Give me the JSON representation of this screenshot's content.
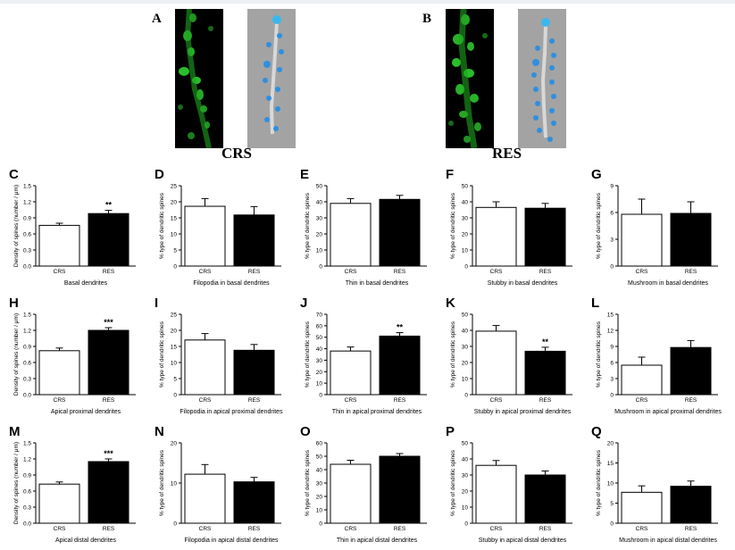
{
  "images": {
    "A": {
      "letter": "A",
      "group": "CRS"
    },
    "B": {
      "letter": "B",
      "group": "RES"
    }
  },
  "colors": {
    "ctrl_fill": "#ffffff",
    "exp_fill": "#000000",
    "fluor": "#2fd12f",
    "model_spine": "#2f8fe0",
    "model_bg": "#a3a3a3"
  },
  "chart_data": [
    {
      "letter": "C",
      "type": "bar",
      "categories": [
        "CRS",
        "RES"
      ],
      "values": [
        0.76,
        0.98
      ],
      "errors": [
        0.04,
        0.06
      ],
      "ylim": [
        0,
        1.5
      ],
      "yticks": [
        "0.0",
        "0.3",
        "0.6",
        "0.9",
        "1.2",
        "1.5"
      ],
      "ylabel": "Density of spines (number / μm)",
      "xlabel": "Basal dendrites",
      "sig": "**"
    },
    {
      "letter": "D",
      "type": "bar",
      "categories": [
        "CRS",
        "RES"
      ],
      "values": [
        18.6,
        15.9
      ],
      "errors": [
        2.4,
        2.6
      ],
      "ylim": [
        0,
        25
      ],
      "yticks": [
        "0",
        "5",
        "10",
        "15",
        "20",
        "25"
      ],
      "ylabel": "% type of dendritic spines",
      "xlabel": "Filopodia in basal dendrites",
      "sig": ""
    },
    {
      "letter": "E",
      "type": "bar",
      "categories": [
        "CRS",
        "RES"
      ],
      "values": [
        39,
        41.5
      ],
      "errors": [
        3,
        2.5
      ],
      "ylim": [
        0,
        50
      ],
      "yticks": [
        "0",
        "10",
        "20",
        "30",
        "40",
        "50"
      ],
      "ylabel": "% type of dendritic spines",
      "xlabel": "Thin in basal dendrites",
      "sig": ""
    },
    {
      "letter": "F",
      "type": "bar",
      "categories": [
        "CRS",
        "RES"
      ],
      "values": [
        36.5,
        36
      ],
      "errors": [
        3.5,
        3
      ],
      "ylim": [
        0,
        50
      ],
      "yticks": [
        "0",
        "10",
        "20",
        "30",
        "40",
        "50"
      ],
      "ylabel": "% type of dendritic spines",
      "xlabel": "Stubby in basal dendrites",
      "sig": ""
    },
    {
      "letter": "G",
      "type": "bar",
      "categories": [
        "CRS",
        "RES"
      ],
      "values": [
        5.8,
        5.9
      ],
      "errors": [
        1.7,
        1.3
      ],
      "ylim": [
        0,
        9
      ],
      "yticks": [
        "0",
        "3",
        "6",
        "9"
      ],
      "ylabel": "% type of dendritic spines",
      "xlabel": "Mushroom in basal dendrites",
      "sig": ""
    },
    {
      "letter": "H",
      "type": "bar",
      "categories": [
        "CRS",
        "RES"
      ],
      "values": [
        0.82,
        1.2
      ],
      "errors": [
        0.05,
        0.05
      ],
      "ylim": [
        0,
        1.5
      ],
      "yticks": [
        "0.0",
        "0.3",
        "0.6",
        "0.9",
        "1.2",
        "1.5"
      ],
      "ylabel": "Density of spines (number / μm)",
      "xlabel": "Apical proximal dendrites",
      "sig": "***"
    },
    {
      "letter": "I",
      "type": "bar",
      "categories": [
        "CRS",
        "RES"
      ],
      "values": [
        17,
        13.8
      ],
      "errors": [
        2,
        1.8
      ],
      "ylim": [
        0,
        25
      ],
      "yticks": [
        "0",
        "5",
        "10",
        "15",
        "20",
        "25"
      ],
      "ylabel": "% type of dendritic spines",
      "xlabel": "Filopodia in apical proximal dendrites",
      "sig": ""
    },
    {
      "letter": "J",
      "type": "bar",
      "categories": [
        "CRS",
        "RES"
      ],
      "values": [
        38,
        51
      ],
      "errors": [
        3.5,
        3
      ],
      "ylim": [
        0,
        70
      ],
      "yticks": [
        "0",
        "10",
        "20",
        "30",
        "40",
        "50",
        "60",
        "70"
      ],
      "ylabel": "% type of dendritic spines",
      "xlabel": "Thin in apical proximal dendrites",
      "sig": "**"
    },
    {
      "letter": "K",
      "type": "bar",
      "categories": [
        "CRS",
        "RES"
      ],
      "values": [
        39.5,
        27
      ],
      "errors": [
        3.5,
        2.5
      ],
      "ylim": [
        0,
        50
      ],
      "yticks": [
        "0",
        "10",
        "20",
        "30",
        "40",
        "50"
      ],
      "ylabel": "% type of dendritic spines",
      "xlabel": "Stubby in apical proximal dendrites",
      "sig": "**"
    },
    {
      "letter": "L",
      "type": "bar",
      "categories": [
        "CRS",
        "RES"
      ],
      "values": [
        5.5,
        8.8
      ],
      "errors": [
        1.5,
        1.3
      ],
      "ylim": [
        0,
        15
      ],
      "yticks": [
        "0",
        "3",
        "6",
        "9",
        "12",
        "15"
      ],
      "ylabel": "% type of dendritic spines",
      "xlabel": "Mushroom in apical proximal dendrites",
      "sig": ""
    },
    {
      "letter": "M",
      "type": "bar",
      "categories": [
        "CRS",
        "RES"
      ],
      "values": [
        0.73,
        1.15
      ],
      "errors": [
        0.04,
        0.05
      ],
      "ylim": [
        0,
        1.5
      ],
      "yticks": [
        "0.0",
        "0.3",
        "0.6",
        "0.9",
        "1.2",
        "1.5"
      ],
      "ylabel": "Density of spines (number / μm)",
      "xlabel": "Apical distal dendrites",
      "sig": "***"
    },
    {
      "letter": "N",
      "type": "bar",
      "categories": [
        "CRS",
        "RES"
      ],
      "values": [
        12.2,
        10.3
      ],
      "errors": [
        2.4,
        1.1
      ],
      "ylim": [
        0,
        20
      ],
      "yticks": [
        "0",
        "10",
        "20"
      ],
      "ylabel": "% type of dendritic spines",
      "xlabel": "Filopodia in apical distal dendrites",
      "sig": ""
    },
    {
      "letter": "O",
      "type": "bar",
      "categories": [
        "CRS",
        "RES"
      ],
      "values": [
        44,
        50
      ],
      "errors": [
        3,
        2
      ],
      "ylim": [
        0,
        60
      ],
      "yticks": [
        "0",
        "10",
        "20",
        "30",
        "40",
        "50",
        "60"
      ],
      "ylabel": "% type of dendritic spines",
      "xlabel": "Thin in apical distal dendrites",
      "sig": ""
    },
    {
      "letter": "P",
      "type": "bar",
      "categories": [
        "CRS",
        "RES"
      ],
      "values": [
        36,
        30
      ],
      "errors": [
        3,
        2.5
      ],
      "ylim": [
        0,
        50
      ],
      "yticks": [
        "0",
        "10",
        "20",
        "30",
        "40",
        "50"
      ],
      "ylabel": "% type of dendritic spines",
      "xlabel": "Stubby in apical distal dendrites",
      "sig": ""
    },
    {
      "letter": "Q",
      "type": "bar",
      "categories": [
        "CRS",
        "RES"
      ],
      "values": [
        7.7,
        9.2
      ],
      "errors": [
        1.6,
        1.3
      ],
      "ylim": [
        0,
        20
      ],
      "yticks": [
        "0",
        "5",
        "10",
        "15",
        "20"
      ],
      "ylabel": "% type of dendritic spines",
      "xlabel": "Mushroom in apical distal dendrites",
      "sig": ""
    }
  ]
}
